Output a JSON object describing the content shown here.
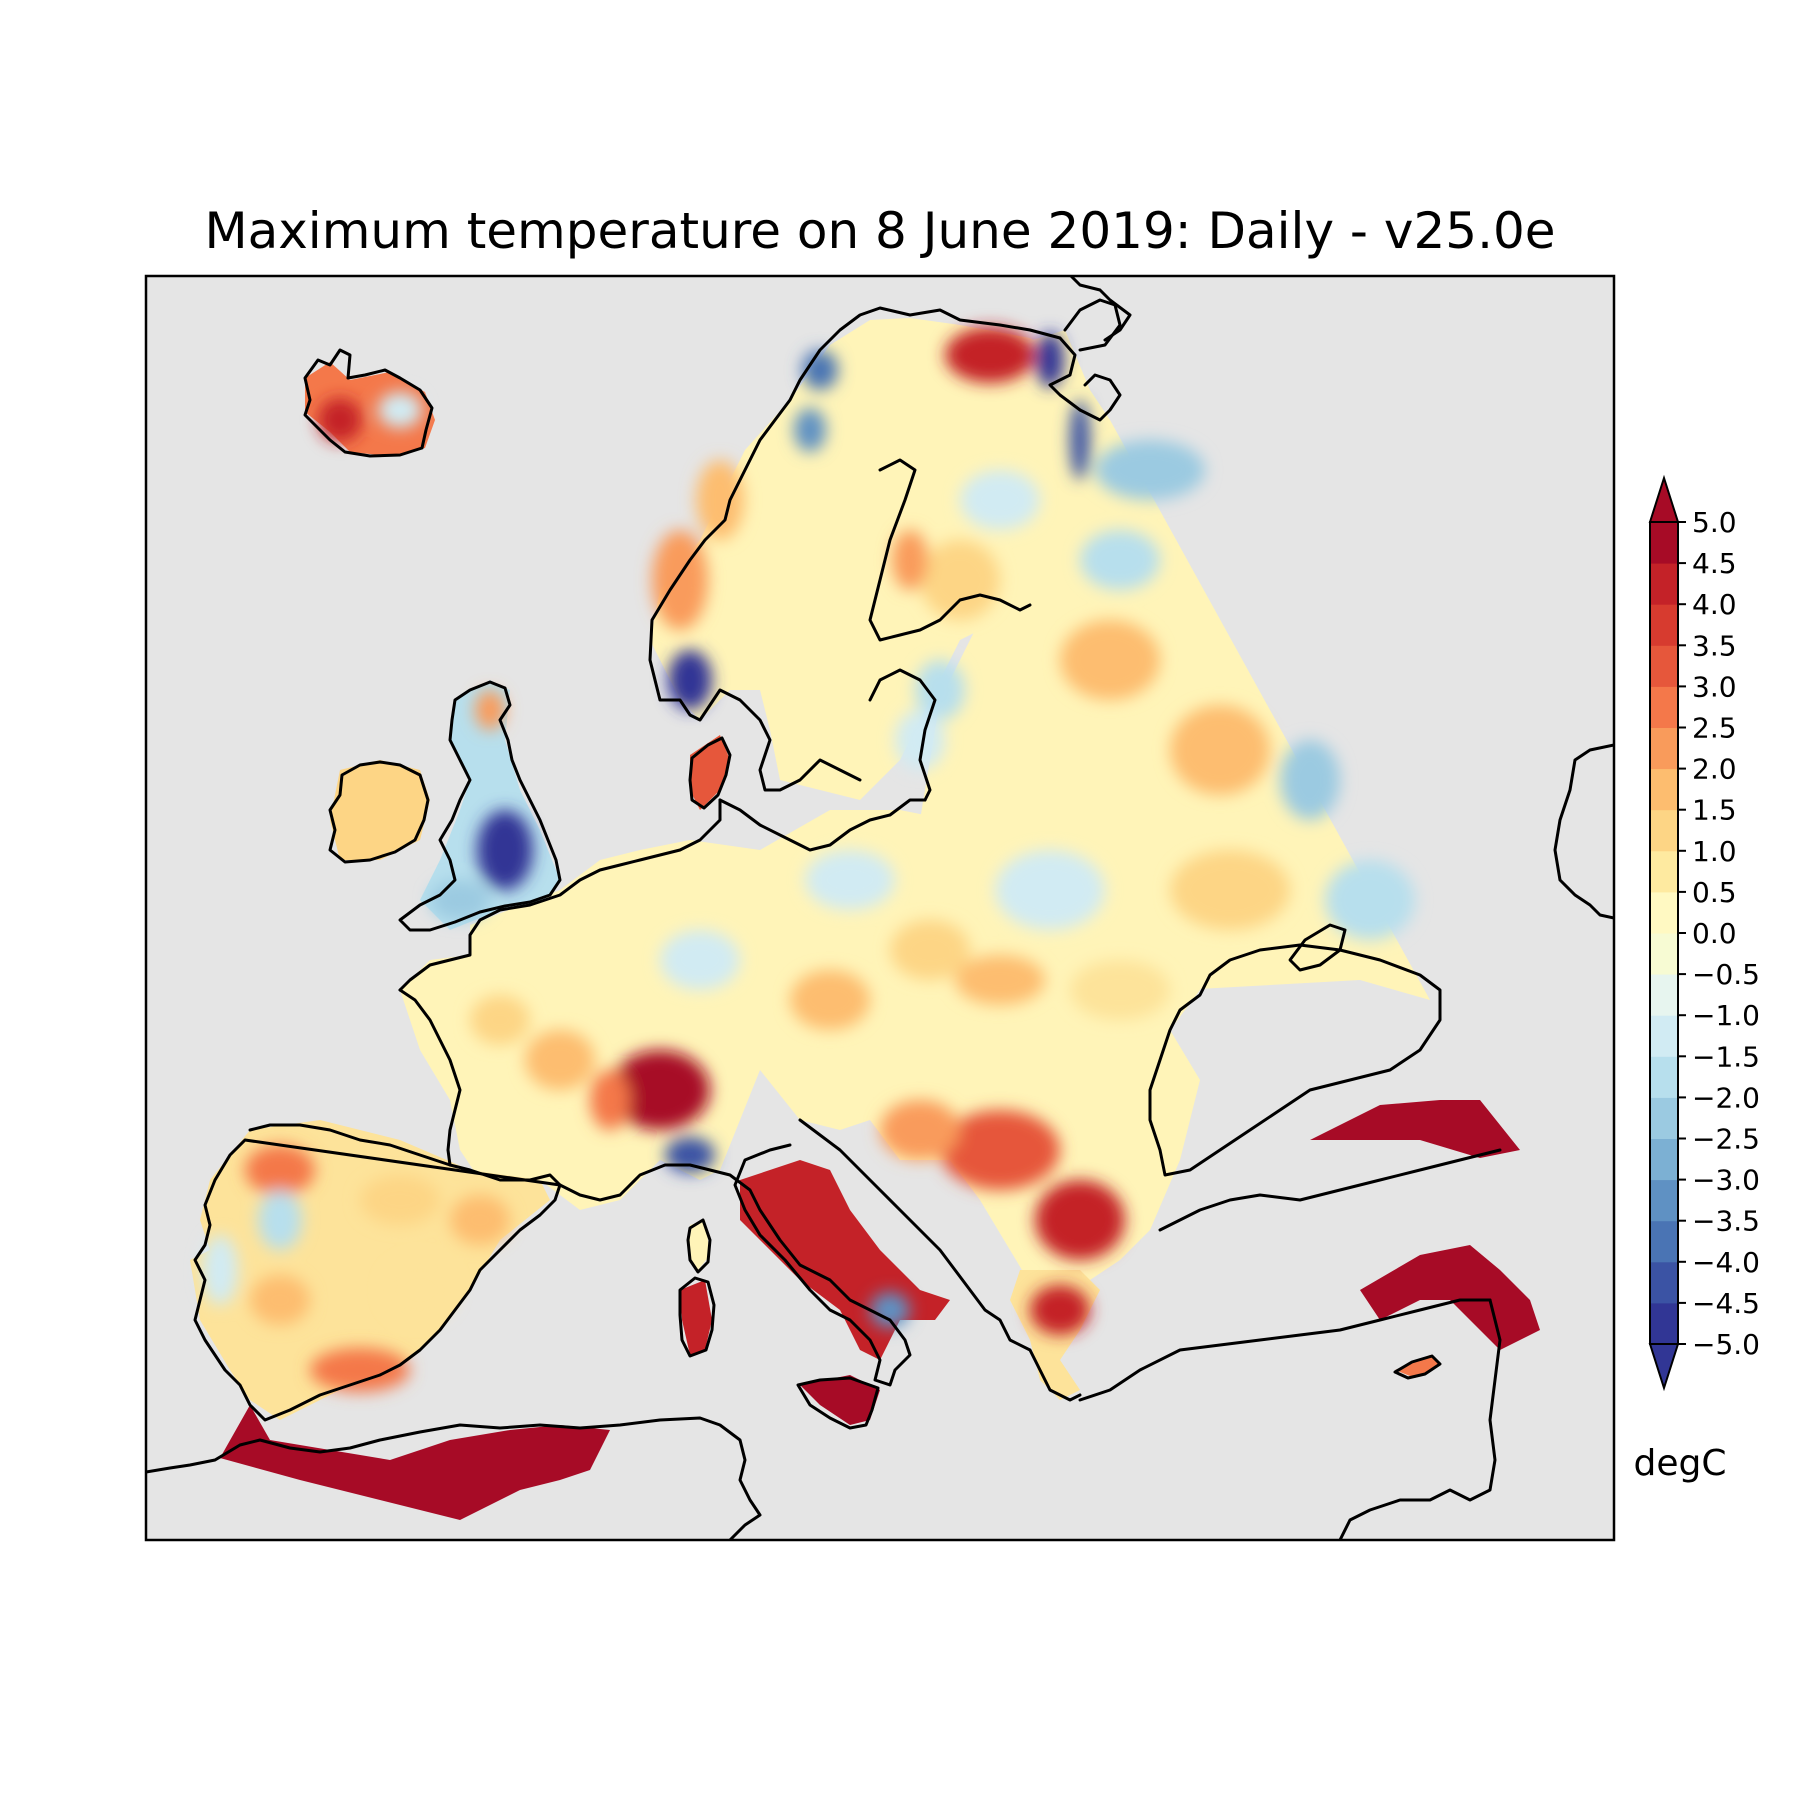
{
  "title": "Maximum temperature on 8 June 2019: Daily - v25.0e",
  "map": {
    "background_color": "#e5e5e5",
    "field": "maximum temperature anomaly",
    "colormap": "RdYlBu_r",
    "hotspots": [
      {
        "region": "Iceland",
        "value": 3.0
      },
      {
        "region": "Northern Finland / Kola",
        "value": 5.0
      },
      {
        "region": "Northern Scandinavia coast",
        "value": -4.5
      },
      {
        "region": "Southern Norway",
        "value": -4.5
      },
      {
        "region": "England",
        "value": -5.0
      },
      {
        "region": "Denmark",
        "value": 4.0
      },
      {
        "region": "Spain",
        "value": 2.0
      },
      {
        "region": "Eastern France",
        "value": 5.0
      },
      {
        "region": "Western Alps",
        "value": -4.0
      },
      {
        "region": "Italy",
        "value": 5.0
      },
      {
        "region": "Sardinia",
        "value": 4.5
      },
      {
        "region": "Sicily",
        "value": 5.0
      },
      {
        "region": "Balkans",
        "value": 3.5
      },
      {
        "region": "North Africa coast",
        "value": 5.0
      },
      {
        "region": "Turkey north coast",
        "value": 5.0
      },
      {
        "region": "Southern Turkey",
        "value": 5.0
      },
      {
        "region": "Russia eastern edge",
        "value": -2.5
      },
      {
        "region": "Central Russia",
        "value": 1.5
      }
    ]
  },
  "colorbar": {
    "min": -5.0,
    "max": 5.0,
    "step": 0.5,
    "extend": "both",
    "unit": "degC",
    "ticks": [
      "5.0",
      "4.5",
      "4.0",
      "3.5",
      "3.0",
      "2.5",
      "2.0",
      "1.5",
      "1.0",
      "0.5",
      "0.0",
      "−0.5",
      "−1.0",
      "−1.5",
      "−2.0",
      "−2.5",
      "−3.0",
      "−3.5",
      "−4.0",
      "−4.5",
      "−5.0"
    ],
    "colors": [
      "#313695",
      "#3b53a4",
      "#4a74b4",
      "#5f91c3",
      "#7cb0d3",
      "#9bcae1",
      "#b7dfed",
      "#d1ebf3",
      "#e7f5ef",
      "#f7fbd3",
      "#fff9c2",
      "#feeaa0",
      "#fdd585",
      "#fdbd6f",
      "#f99b5b",
      "#f4784a",
      "#e6573b",
      "#d73b2f",
      "#c42228",
      "#a70b26"
    ]
  }
}
